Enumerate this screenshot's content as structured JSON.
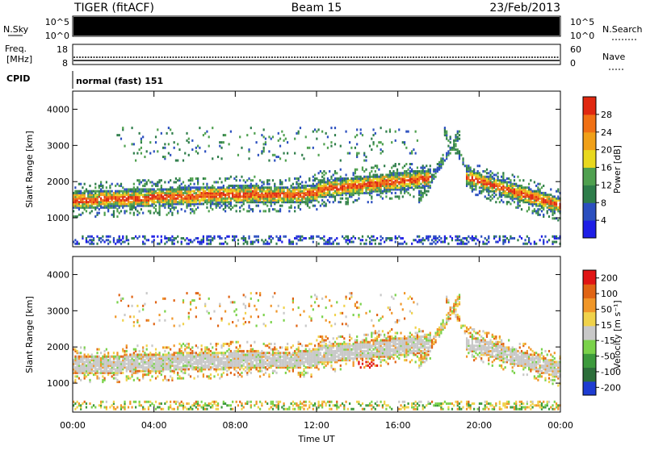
{
  "header": {
    "radar": "TIGER (fitACF)",
    "beam": "Beam 15",
    "date": "23/Feb/2013"
  },
  "status_panels": {
    "nsky": {
      "label": "N.Sky",
      "ticks": [
        "10^5",
        "10^0"
      ]
    },
    "nsearch": {
      "label": "N.Search",
      "ticks": [
        "10^5",
        "10^0"
      ]
    },
    "freq": {
      "label_line1": "Freq.",
      "label_line2": "[MHz]",
      "ticks": [
        "18",
        "8"
      ]
    },
    "nave": {
      "label": "Nave",
      "ticks": [
        "60",
        "0"
      ]
    },
    "cpid": {
      "label": "CPID",
      "value": "normal (fast) 151"
    }
  },
  "chart_data": [
    {
      "type": "heatmap",
      "title": "",
      "xlabel": "",
      "ylabel": "Slant Range [km]",
      "yticks": [
        1000,
        2000,
        3000,
        4000
      ],
      "ylim": [
        200,
        4500
      ],
      "xlim_hours": [
        0,
        24
      ],
      "colorbar": {
        "label": "Power [dB]",
        "ticks": [
          "4",
          "8",
          "12",
          "16",
          "20",
          "24",
          "28"
        ],
        "colors": [
          "#1e1ee6",
          "#2b4fbf",
          "#2e7d4a",
          "#4fa04f",
          "#e8d81e",
          "#f0a018",
          "#f07014",
          "#e02810"
        ]
      },
      "features": [
        {
          "name": "main band",
          "t_start": 0,
          "t_end": 17.6,
          "range_start_km": 1250,
          "range_end_km": 2000
        },
        {
          "name": "evening band",
          "t_start": 19.5,
          "t_end": 24,
          "range_start_km": 2100,
          "range_end_km": 1300
        }
      ]
    },
    {
      "type": "heatmap",
      "title": "",
      "xlabel": "Time UT",
      "ylabel": "Slant Range [km]",
      "xticks": [
        "00:00",
        "04:00",
        "08:00",
        "12:00",
        "16:00",
        "20:00",
        "00:00"
      ],
      "yticks": [
        1000,
        2000,
        3000,
        4000
      ],
      "ylim": [
        200,
        4500
      ],
      "xlim_hours": [
        0,
        24
      ],
      "colorbar": {
        "label": "Velocity [m s⁻¹]",
        "ticks": [
          "200",
          "100",
          "50",
          "15",
          "-15",
          "-50",
          "-100",
          "-200"
        ],
        "colors": [
          "#1e3cd2",
          "#2c6e3a",
          "#3c9a3c",
          "#7ad24a",
          "#c8c8c8",
          "#f0d24a",
          "#f09628",
          "#e06414",
          "#e01414"
        ]
      }
    }
  ]
}
